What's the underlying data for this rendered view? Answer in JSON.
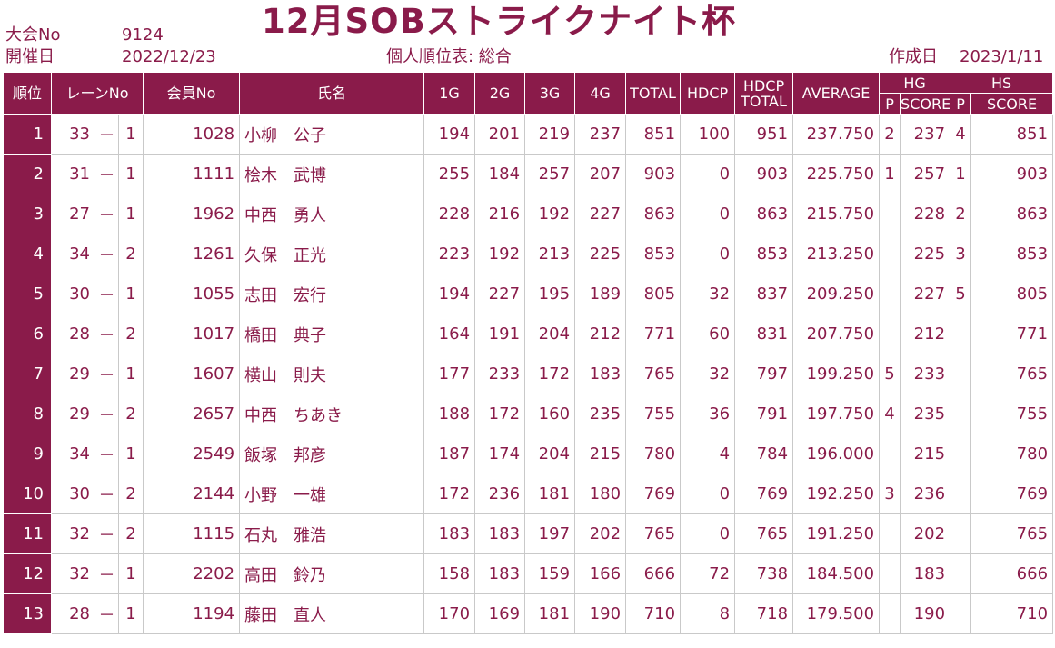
{
  "header": {
    "title": "12月SOBストライクナイト杯",
    "taikai_label": "大会No",
    "taikai_no": "9124",
    "kaisai_label": "開催日",
    "kaisai_date": "2022/12/23",
    "subtitle": "個人順位表: 総合",
    "sakusei_label": "作成日",
    "sakusei_date": "2023/1/11"
  },
  "columns": {
    "rank": "順位",
    "lane": "レーンNo",
    "member": "会員No",
    "name": "氏名",
    "g1": "1G",
    "g2": "2G",
    "g3": "3G",
    "g4": "4G",
    "total": "TOTAL",
    "hdcp": "HDCP",
    "hdcp_total_1": "HDCP",
    "hdcp_total_2": "TOTAL",
    "average": "AVERAGE",
    "hg": "HG",
    "hs": "HS",
    "p": "P",
    "score": "SCORE"
  },
  "rows": [
    {
      "rank": "1",
      "lane_a": "33",
      "dash": "－",
      "lane_b": "1",
      "member": "1028",
      "name": "小柳　公子",
      "g1": "194",
      "g2": "201",
      "g3": "219",
      "g4": "237",
      "total": "851",
      "hdcp": "100",
      "hdcp_total": "951",
      "avg": "237.750",
      "hg_p": "2",
      "hg_score": "237",
      "hs_p": "4",
      "hs_score": "851"
    },
    {
      "rank": "2",
      "lane_a": "31",
      "dash": "－",
      "lane_b": "1",
      "member": "1111",
      "name": "桧木　武博",
      "g1": "255",
      "g2": "184",
      "g3": "257",
      "g4": "207",
      "total": "903",
      "hdcp": "0",
      "hdcp_total": "903",
      "avg": "225.750",
      "hg_p": "1",
      "hg_score": "257",
      "hs_p": "1",
      "hs_score": "903"
    },
    {
      "rank": "3",
      "lane_a": "27",
      "dash": "－",
      "lane_b": "1",
      "member": "1962",
      "name": "中西　勇人",
      "g1": "228",
      "g2": "216",
      "g3": "192",
      "g4": "227",
      "total": "863",
      "hdcp": "0",
      "hdcp_total": "863",
      "avg": "215.750",
      "hg_p": "",
      "hg_score": "228",
      "hs_p": "2",
      "hs_score": "863"
    },
    {
      "rank": "4",
      "lane_a": "34",
      "dash": "－",
      "lane_b": "2",
      "member": "1261",
      "name": "久保　正光",
      "g1": "223",
      "g2": "192",
      "g3": "213",
      "g4": "225",
      "total": "853",
      "hdcp": "0",
      "hdcp_total": "853",
      "avg": "213.250",
      "hg_p": "",
      "hg_score": "225",
      "hs_p": "3",
      "hs_score": "853"
    },
    {
      "rank": "5",
      "lane_a": "30",
      "dash": "－",
      "lane_b": "1",
      "member": "1055",
      "name": "志田　宏行",
      "g1": "194",
      "g2": "227",
      "g3": "195",
      "g4": "189",
      "total": "805",
      "hdcp": "32",
      "hdcp_total": "837",
      "avg": "209.250",
      "hg_p": "",
      "hg_score": "227",
      "hs_p": "5",
      "hs_score": "805"
    },
    {
      "rank": "6",
      "lane_a": "28",
      "dash": "－",
      "lane_b": "2",
      "member": "1017",
      "name": "橋田　典子",
      "g1": "164",
      "g2": "191",
      "g3": "204",
      "g4": "212",
      "total": "771",
      "hdcp": "60",
      "hdcp_total": "831",
      "avg": "207.750",
      "hg_p": "",
      "hg_score": "212",
      "hs_p": "",
      "hs_score": "771"
    },
    {
      "rank": "7",
      "lane_a": "29",
      "dash": "－",
      "lane_b": "1",
      "member": "1607",
      "name": "横山　則夫",
      "g1": "177",
      "g2": "233",
      "g3": "172",
      "g4": "183",
      "total": "765",
      "hdcp": "32",
      "hdcp_total": "797",
      "avg": "199.250",
      "hg_p": "5",
      "hg_score": "233",
      "hs_p": "",
      "hs_score": "765"
    },
    {
      "rank": "8",
      "lane_a": "29",
      "dash": "－",
      "lane_b": "2",
      "member": "2657",
      "name": "中西　ちあき",
      "g1": "188",
      "g2": "172",
      "g3": "160",
      "g4": "235",
      "total": "755",
      "hdcp": "36",
      "hdcp_total": "791",
      "avg": "197.750",
      "hg_p": "4",
      "hg_score": "235",
      "hs_p": "",
      "hs_score": "755"
    },
    {
      "rank": "9",
      "lane_a": "34",
      "dash": "－",
      "lane_b": "1",
      "member": "2549",
      "name": "飯塚　邦彦",
      "g1": "187",
      "g2": "174",
      "g3": "204",
      "g4": "215",
      "total": "780",
      "hdcp": "4",
      "hdcp_total": "784",
      "avg": "196.000",
      "hg_p": "",
      "hg_score": "215",
      "hs_p": "",
      "hs_score": "780"
    },
    {
      "rank": "10",
      "lane_a": "30",
      "dash": "－",
      "lane_b": "2",
      "member": "2144",
      "name": "小野　一雄",
      "g1": "172",
      "g2": "236",
      "g3": "181",
      "g4": "180",
      "total": "769",
      "hdcp": "0",
      "hdcp_total": "769",
      "avg": "192.250",
      "hg_p": "3",
      "hg_score": "236",
      "hs_p": "",
      "hs_score": "769"
    },
    {
      "rank": "11",
      "lane_a": "32",
      "dash": "－",
      "lane_b": "2",
      "member": "1115",
      "name": "石丸　雅浩",
      "g1": "183",
      "g2": "183",
      "g3": "197",
      "g4": "202",
      "total": "765",
      "hdcp": "0",
      "hdcp_total": "765",
      "avg": "191.250",
      "hg_p": "",
      "hg_score": "202",
      "hs_p": "",
      "hs_score": "765"
    },
    {
      "rank": "12",
      "lane_a": "32",
      "dash": "－",
      "lane_b": "1",
      "member": "2202",
      "name": "高田　鈴乃",
      "g1": "158",
      "g2": "183",
      "g3": "159",
      "g4": "166",
      "total": "666",
      "hdcp": "72",
      "hdcp_total": "738",
      "avg": "184.500",
      "hg_p": "",
      "hg_score": "183",
      "hs_p": "",
      "hs_score": "666"
    },
    {
      "rank": "13",
      "lane_a": "28",
      "dash": "－",
      "lane_b": "1",
      "member": "1194",
      "name": "藤田　直人",
      "g1": "170",
      "g2": "169",
      "g3": "181",
      "g4": "190",
      "total": "710",
      "hdcp": "8",
      "hdcp_total": "718",
      "avg": "179.500",
      "hg_p": "",
      "hg_score": "190",
      "hs_p": "",
      "hs_score": "710"
    }
  ]
}
